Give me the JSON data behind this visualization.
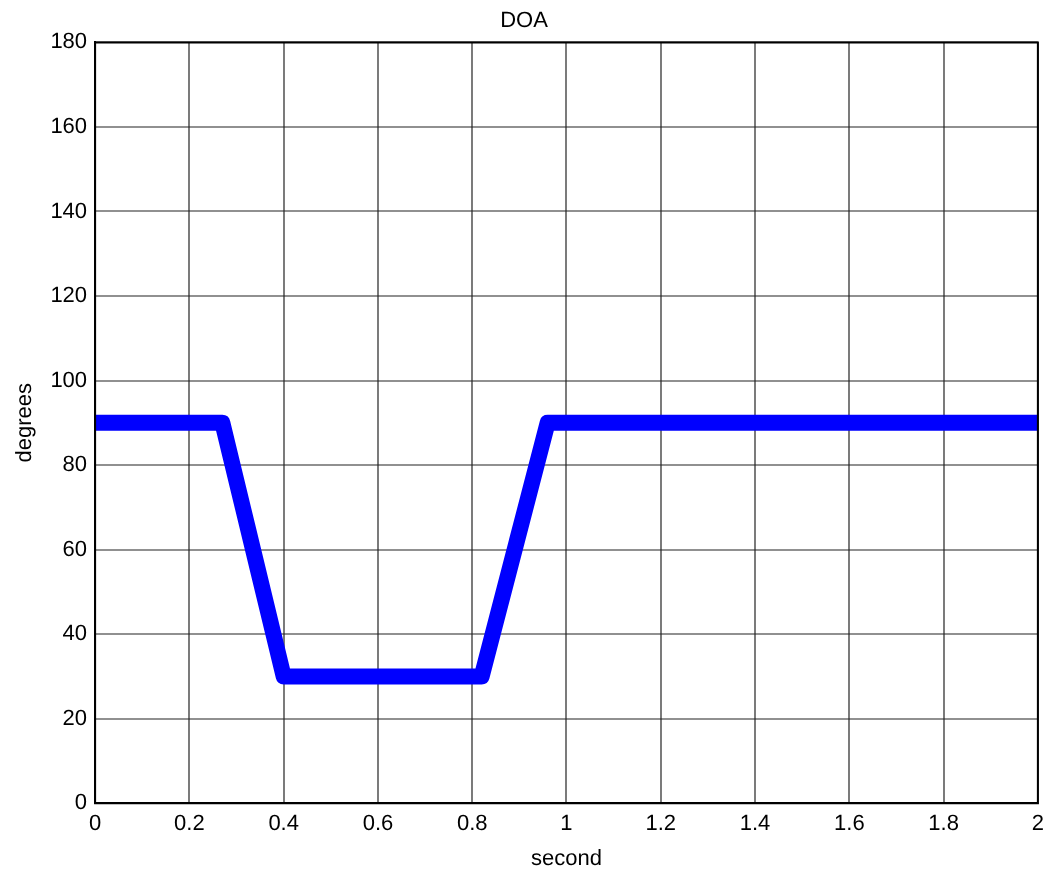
{
  "chart_data": {
    "type": "line",
    "title": "DOA",
    "xlabel": "second",
    "ylabel": "degrees",
    "x": [
      0,
      0.27,
      0.4,
      0.82,
      0.96,
      2
    ],
    "series": [
      {
        "color": "#0000ff",
        "values": [
          90,
          90,
          30,
          30,
          90,
          90
        ]
      }
    ],
    "xlim": [
      0,
      2
    ],
    "xticks": [
      0,
      0.2,
      0.4,
      0.6,
      0.8,
      1,
      1.2,
      1.4,
      1.6,
      1.8,
      2
    ],
    "ylim": [
      0,
      180
    ],
    "yticks": [
      0,
      20,
      40,
      60,
      80,
      100,
      120,
      140,
      160,
      180
    ],
    "grid": true,
    "legend": false,
    "marker": "none",
    "line_style": "solid"
  }
}
